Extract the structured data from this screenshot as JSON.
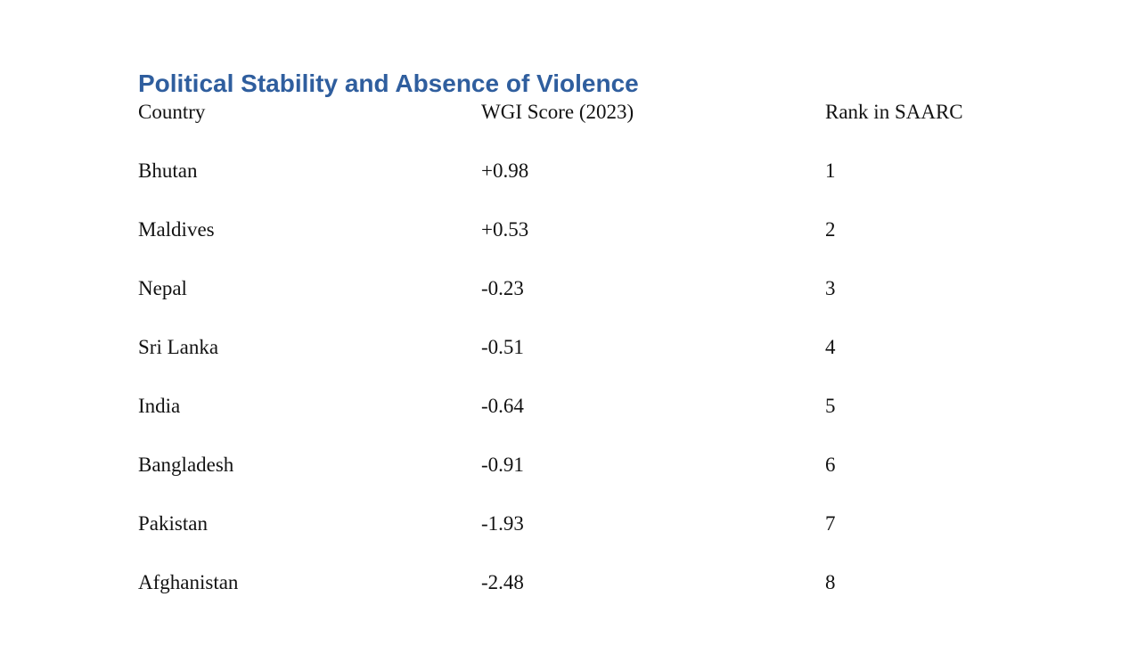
{
  "title": {
    "text": "Political Stability and Absence of Violence",
    "color": "#2F5E9E"
  },
  "table": {
    "columns": {
      "country": "Country",
      "score": "WGI Score (2023)",
      "rank": "Rank in SAARC"
    },
    "rows": [
      {
        "country": "Bhutan",
        "score": "+0.98",
        "rank": "1"
      },
      {
        "country": "Maldives",
        "score": "+0.53",
        "rank": "2"
      },
      {
        "country": "Nepal",
        "score": "-0.23",
        "rank": "3"
      },
      {
        "country": "Sri Lanka",
        "score": "-0.51",
        "rank": "4"
      },
      {
        "country": "India",
        "score": "-0.64",
        "rank": "5"
      },
      {
        "country": "Bangladesh",
        "score": "-0.91",
        "rank": "6"
      },
      {
        "country": "Pakistan",
        "score": "-1.93",
        "rank": "7"
      },
      {
        "country": "Afghanistan",
        "score": "-2.48",
        "rank": "8"
      }
    ]
  }
}
